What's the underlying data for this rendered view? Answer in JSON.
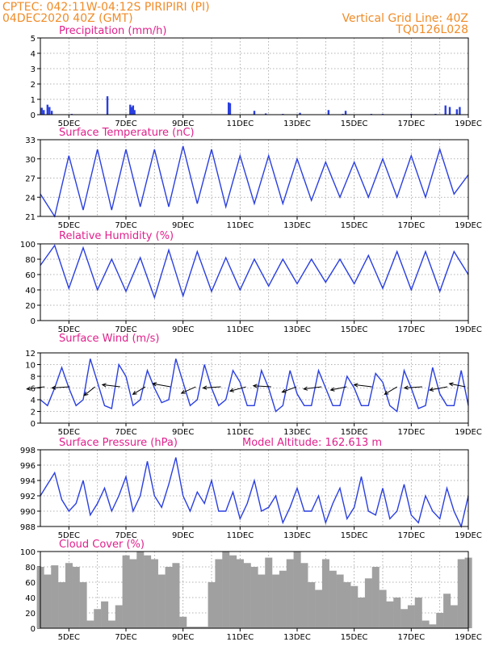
{
  "header": {
    "line1_left": "CPTEC:   042:11W-04:12S   PIRIPIRI (PI)",
    "line2_left": "04DEC2020 40Z (GMT)",
    "line1_right": "Vertical Grid Line: 40Z",
    "line2_right": "TQ0126L028"
  },
  "model_altitude": "Model Altitude: 162.613 m",
  "colors": {
    "header": "#f08c28",
    "title": "#e0208c",
    "line": "#2a3fe0",
    "bar": "#2a3fe0",
    "cloud": "#a0a0a0"
  },
  "date_labels": [
    "5DEC",
    "7DEC",
    "9DEC",
    "11DEC",
    "13DEC",
    "15DEC",
    "17DEC",
    "19DEC"
  ],
  "chart_data": [
    {
      "type": "bar",
      "title": "Precipitation (mm/h)",
      "ylim": [
        0,
        5
      ],
      "yticks": [
        0,
        1,
        2,
        3,
        4,
        5
      ],
      "xlim": [
        0,
        15
      ],
      "grid": true,
      "x": [
        0.05,
        0.12,
        0.25,
        0.32,
        0.4,
        1.1,
        2.35,
        3.15,
        3.2,
        3.25,
        3.3,
        6.6,
        6.65,
        7.5,
        7.9,
        8.5,
        9.1,
        10.1,
        10.6,
        10.7,
        11.6,
        12.0,
        13.0,
        13.85,
        14.2,
        14.35,
        14.6,
        14.7
      ],
      "values": [
        0.45,
        0.3,
        0.65,
        0.5,
        0.25,
        0.05,
        1.2,
        0.65,
        0.5,
        0.6,
        0.3,
        0.8,
        0.75,
        0.25,
        0.08,
        0.05,
        0.12,
        0.3,
        0.05,
        0.25,
        0.05,
        0.05,
        0.05,
        0.05,
        0.6,
        0.5,
        0.35,
        0.5
      ]
    },
    {
      "type": "line",
      "title": "Surface Temperature (nC)",
      "ylim": [
        21,
        33
      ],
      "yticks": [
        21,
        24,
        27,
        30,
        33
      ],
      "xlim": [
        0,
        15
      ],
      "grid": true,
      "x": [
        0,
        0.5,
        1,
        1.5,
        2,
        2.5,
        3,
        3.5,
        4,
        4.5,
        5,
        5.5,
        6,
        6.5,
        7,
        7.5,
        8,
        8.5,
        9,
        9.5,
        10,
        10.5,
        11,
        11.5,
        12,
        12.5,
        13,
        13.5,
        14,
        14.5,
        15
      ],
      "values": [
        24.5,
        21,
        30.5,
        22,
        31.5,
        22,
        31.5,
        22.5,
        31.5,
        22.5,
        32,
        23,
        31.5,
        22.5,
        30.5,
        23,
        30.5,
        23,
        30,
        23.5,
        29.5,
        24,
        29.5,
        24,
        30,
        24,
        30.5,
        24,
        31.5,
        24.5,
        27.5
      ]
    },
    {
      "type": "line",
      "title": "Relative Humidity (%)",
      "ylim": [
        0,
        100
      ],
      "yticks": [
        0,
        20,
        40,
        60,
        80,
        100
      ],
      "xlim": [
        0,
        15
      ],
      "grid": true,
      "x": [
        0,
        0.5,
        1,
        1.5,
        2,
        2.5,
        3,
        3.5,
        4,
        4.5,
        5,
        5.5,
        6,
        6.5,
        7,
        7.5,
        8,
        8.5,
        9,
        9.5,
        10,
        10.5,
        11,
        11.5,
        12,
        12.5,
        13,
        13.5,
        14,
        14.5,
        15
      ],
      "values": [
        72,
        98,
        42,
        95,
        40,
        80,
        38,
        82,
        30,
        92,
        32,
        90,
        38,
        82,
        40,
        80,
        45,
        80,
        48,
        80,
        50,
        80,
        48,
        85,
        42,
        90,
        40,
        90,
        38,
        90,
        60
      ]
    },
    {
      "type": "line",
      "title": "Surface Wind (m/s)",
      "ylim": [
        0,
        12
      ],
      "yticks": [
        0,
        2,
        4,
        6,
        8,
        10,
        12
      ],
      "xlim": [
        0,
        15
      ],
      "grid": true,
      "x": [
        0,
        0.25,
        0.5,
        0.75,
        1,
        1.25,
        1.5,
        1.75,
        2,
        2.25,
        2.5,
        2.75,
        3,
        3.25,
        3.5,
        3.75,
        4,
        4.25,
        4.5,
        4.75,
        5,
        5.25,
        5.5,
        5.75,
        6,
        6.25,
        6.5,
        6.75,
        7,
        7.25,
        7.5,
        7.75,
        8,
        8.25,
        8.5,
        8.75,
        9,
        9.25,
        9.5,
        9.75,
        10,
        10.25,
        10.5,
        10.75,
        11,
        11.25,
        11.5,
        11.75,
        12,
        12.25,
        12.5,
        12.75,
        13,
        13.25,
        13.5,
        13.75,
        14,
        14.25,
        14.5,
        14.75,
        15
      ],
      "values": [
        4,
        3,
        6,
        9.5,
        6,
        3,
        4,
        11,
        7,
        3,
        2.5,
        10,
        8,
        3,
        4,
        9,
        6,
        3.5,
        4,
        11,
        7,
        3,
        4,
        10,
        6,
        3,
        4,
        9,
        7,
        3,
        3,
        9,
        6,
        2,
        3,
        9,
        5,
        3,
        3,
        9,
        6,
        3,
        3,
        8,
        6,
        3,
        3,
        8.5,
        7,
        3,
        2,
        9,
        6,
        2.5,
        3,
        9.5,
        5,
        3,
        3,
        9,
        3
      ]
    },
    {
      "type": "line",
      "title": "Surface Pressure (hPa)",
      "ylim": [
        988,
        998
      ],
      "yticks": [
        988,
        990,
        992,
        994,
        996,
        998
      ],
      "xlim": [
        0,
        15
      ],
      "grid": true,
      "x": [
        0,
        0.25,
        0.5,
        0.75,
        1,
        1.25,
        1.5,
        1.75,
        2,
        2.25,
        2.5,
        2.75,
        3,
        3.25,
        3.5,
        3.75,
        4,
        4.25,
        4.5,
        4.75,
        5,
        5.25,
        5.5,
        5.75,
        6,
        6.25,
        6.5,
        6.75,
        7,
        7.25,
        7.5,
        7.75,
        8,
        8.25,
        8.5,
        8.75,
        9,
        9.25,
        9.5,
        9.75,
        10,
        10.25,
        10.5,
        10.75,
        11,
        11.25,
        11.5,
        11.75,
        12,
        12.25,
        12.5,
        12.75,
        13,
        13.25,
        13.5,
        13.75,
        14,
        14.25,
        14.5,
        14.75,
        15
      ],
      "values": [
        992,
        993.5,
        995,
        991.5,
        990,
        991,
        994,
        989.5,
        991,
        993,
        990,
        992,
        994.5,
        990,
        992,
        996.5,
        992,
        990.5,
        993.5,
        997,
        992,
        990,
        992.5,
        991,
        994,
        990,
        990,
        992.5,
        989,
        991,
        994,
        990,
        990.5,
        992,
        988.5,
        990.5,
        993,
        990,
        990,
        992,
        988.5,
        991,
        993,
        989,
        990.5,
        994.5,
        990,
        989.5,
        993,
        989,
        990,
        993.5,
        989.5,
        988.5,
        992,
        990,
        989,
        993,
        990,
        988,
        992
      ]
    },
    {
      "type": "area",
      "title": "Cloud Cover (%)",
      "ylim": [
        0,
        100
      ],
      "yticks": [
        0,
        20,
        40,
        60,
        80,
        100
      ],
      "xlim": [
        0,
        15
      ],
      "grid": true,
      "x": [
        0,
        0.25,
        0.5,
        0.75,
        1,
        1.25,
        1.5,
        1.75,
        2,
        2.25,
        2.5,
        2.75,
        3,
        3.25,
        3.5,
        3.75,
        4,
        4.25,
        4.5,
        4.75,
        5,
        5.25,
        5.5,
        5.75,
        6,
        6.25,
        6.5,
        6.75,
        7,
        7.25,
        7.5,
        7.75,
        8,
        8.25,
        8.5,
        8.75,
        9,
        9.25,
        9.5,
        9.75,
        10,
        10.25,
        10.5,
        10.75,
        11,
        11.25,
        11.5,
        11.75,
        12,
        12.25,
        12.5,
        12.75,
        13,
        13.25,
        13.5,
        13.75,
        14,
        14.25,
        14.5,
        14.75,
        15
      ],
      "values": [
        80,
        70,
        82,
        60,
        85,
        80,
        60,
        10,
        25,
        35,
        10,
        30,
        95,
        90,
        100,
        95,
        90,
        70,
        80,
        85,
        15,
        2,
        2,
        2,
        60,
        90,
        100,
        95,
        90,
        85,
        80,
        70,
        92,
        70,
        75,
        90,
        100,
        85,
        60,
        50,
        90,
        75,
        70,
        60,
        55,
        40,
        65,
        80,
        50,
        35,
        40,
        25,
        30,
        40,
        10,
        5,
        20,
        45,
        30,
        90,
        92
      ]
    }
  ]
}
